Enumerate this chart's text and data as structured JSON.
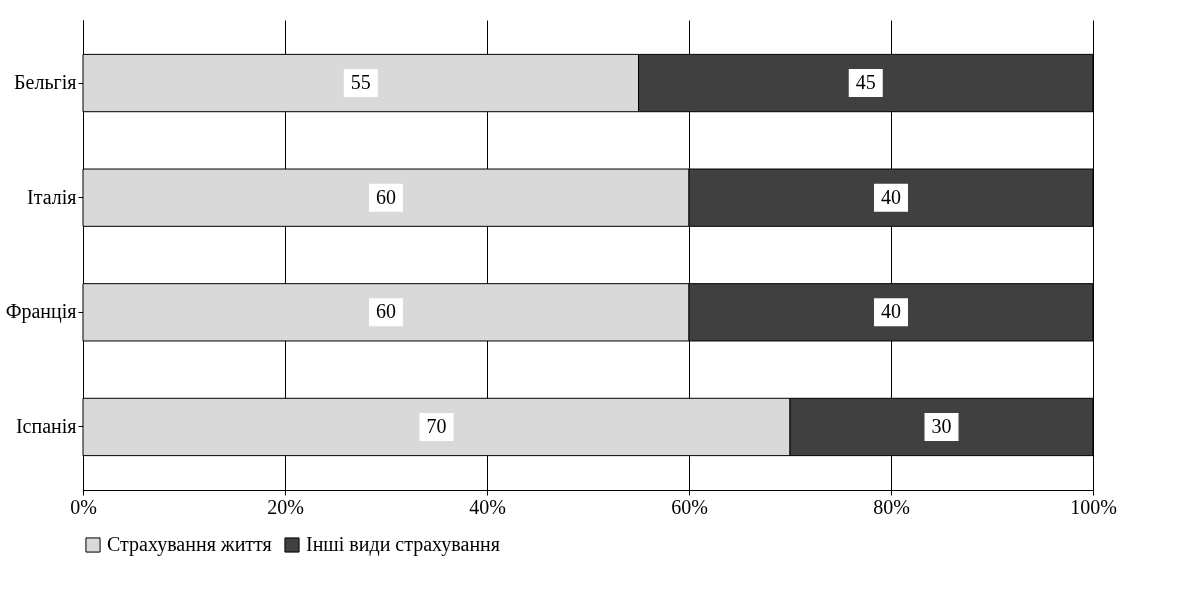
{
  "chart_data": {
    "type": "bar",
    "orientation": "horizontal",
    "stacked": true,
    "categories": [
      "Бельгія",
      "Італія",
      "Франція",
      "Іспанія"
    ],
    "series": [
      {
        "name": "Страхування життя",
        "color": "#d9d9d9",
        "values": [
          55,
          60,
          60,
          70
        ]
      },
      {
        "name": "Інші види страхування",
        "color": "#404040",
        "values": [
          45,
          40,
          40,
          30
        ]
      }
    ],
    "xlim": [
      0,
      100
    ],
    "xticks": [
      {
        "value": 0,
        "label": "0%"
      },
      {
        "value": 20,
        "label": "20%"
      },
      {
        "value": 40,
        "label": "40%"
      },
      {
        "value": 60,
        "label": "60%"
      },
      {
        "value": 80,
        "label": "80%"
      },
      {
        "value": 100,
        "label": "100%"
      }
    ],
    "grid": "x",
    "legend": "bottom",
    "data_labels": true
  }
}
